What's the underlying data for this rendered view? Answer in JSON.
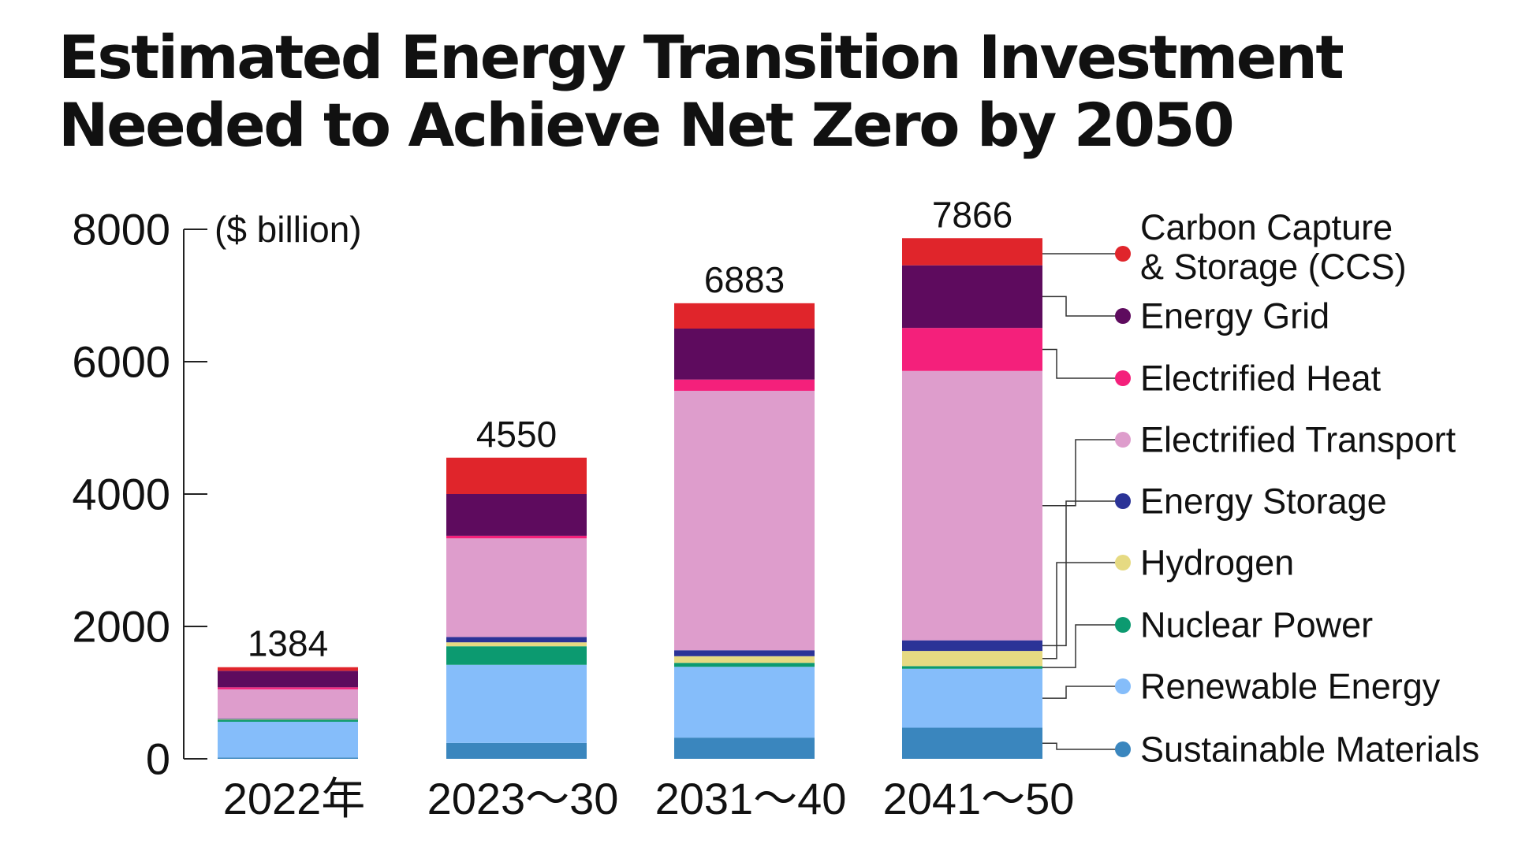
{
  "chart_data": {
    "type": "bar",
    "stacked": true,
    "title_lines": [
      "Estimated Energy Transition Investment",
      "Needed to Achieve Net Zero by 2050"
    ],
    "unit_label": "($ billion)",
    "ylim": [
      0,
      8000
    ],
    "yticks": [
      0,
      2000,
      4000,
      6000,
      8000
    ],
    "categories": [
      "2022年",
      "2023～30",
      "2031～40",
      "2041～50"
    ],
    "totals": [
      1384,
      4550,
      6883,
      7866
    ],
    "series": [
      {
        "name": "Sustainable Materials",
        "color": "#3a86be",
        "values": [
          20,
          240,
          320,
          470
        ]
      },
      {
        "name": "Renewable Energy",
        "color": "#85bdfa",
        "values": [
          540,
          1180,
          1070,
          890
        ]
      },
      {
        "name": "Nuclear Power",
        "color": "#0c9a70",
        "values": [
          30,
          280,
          60,
          40
        ]
      },
      {
        "name": "Hydrogen",
        "color": "#e6da82",
        "values": [
          10,
          60,
          100,
          230
        ]
      },
      {
        "name": "Energy Storage",
        "color": "#2b3397",
        "values": [
          10,
          80,
          90,
          160
        ]
      },
      {
        "name": "Electrified Transport",
        "color": "#de9dcc",
        "values": [
          440,
          1490,
          3920,
          4070
        ]
      },
      {
        "name": "Electrified Heat",
        "color": "#f4207b",
        "values": [
          30,
          40,
          170,
          650
        ]
      },
      {
        "name": "Energy Grid",
        "color": "#5e0b5e",
        "values": [
          250,
          630,
          770,
          946
        ]
      },
      {
        "name": "Carbon Capture & Storage (CCS)",
        "color": "#e0252b",
        "values": [
          54,
          550,
          383,
          410
        ]
      }
    ],
    "legend": {
      "position": "right",
      "order": [
        "Carbon Capture & Storage (CCS)",
        "Energy Grid",
        "Electrified Heat",
        "Electrified Transport",
        "Energy Storage",
        "Hydrogen",
        "Nuclear Power",
        "Renewable Energy",
        "Sustainable Materials"
      ]
    }
  }
}
